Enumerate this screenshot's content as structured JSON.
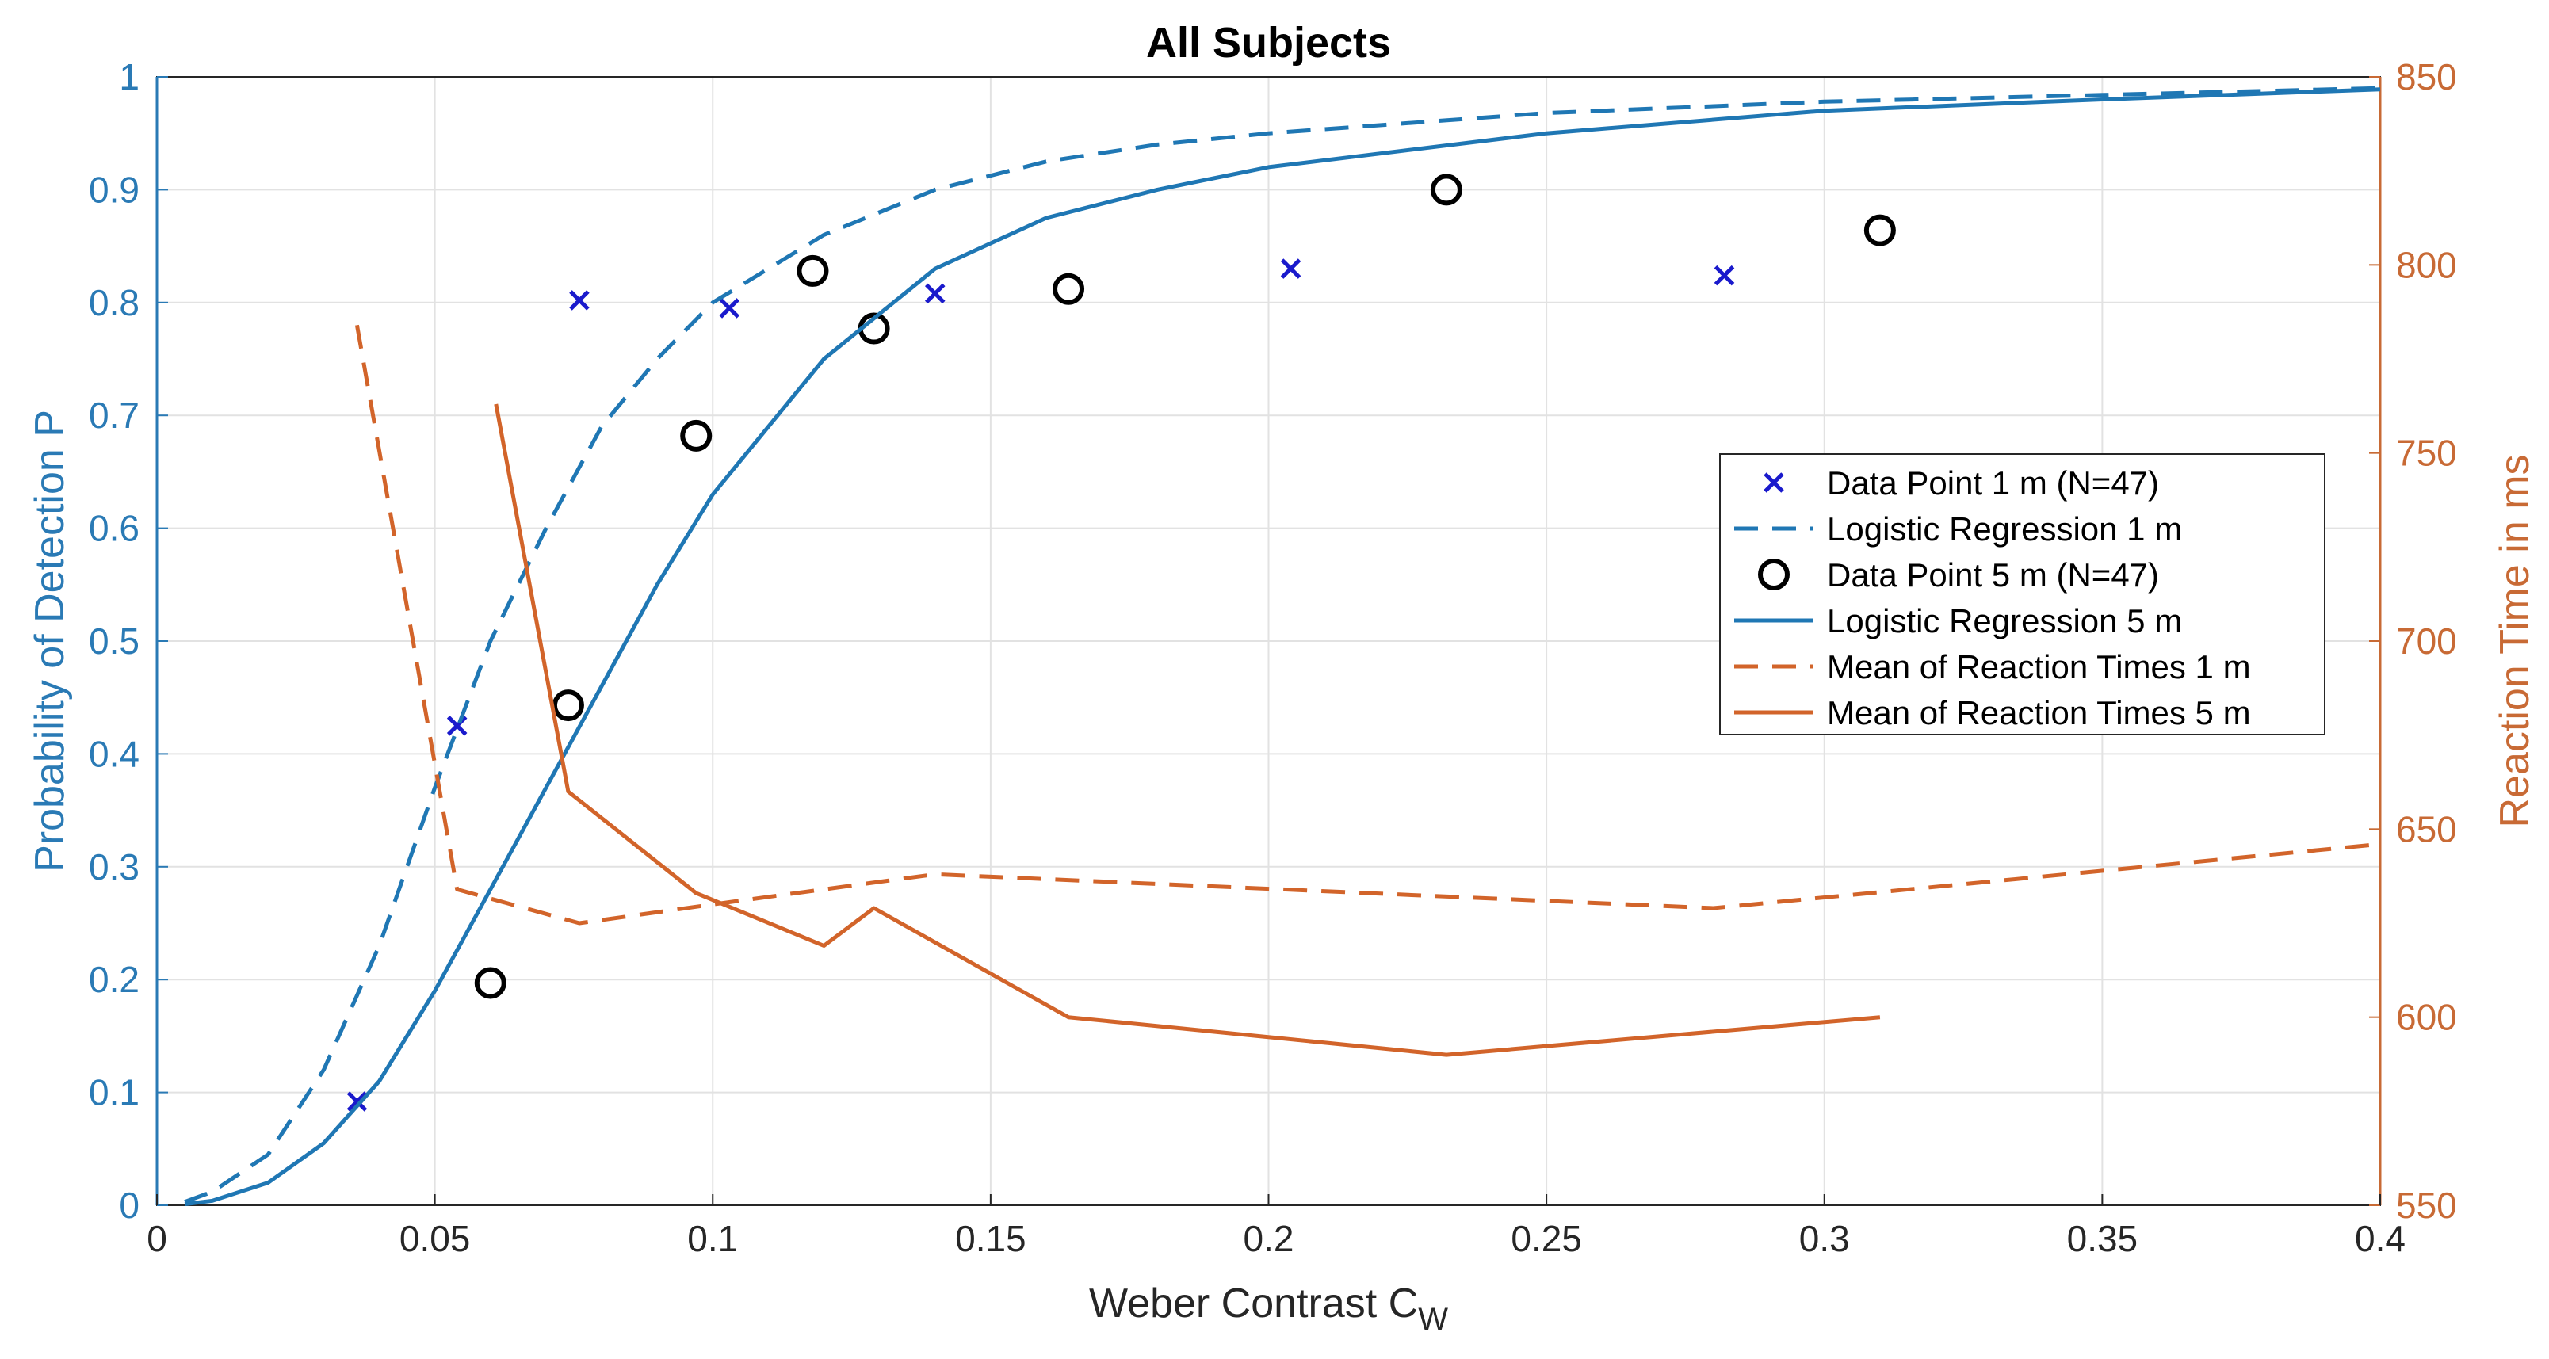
{
  "chart_data": {
    "type": "scatter",
    "title": "All Subjects",
    "xlabel": "Weber Contrast C",
    "xlabel_sub": "W",
    "ylabel_left": "Probability of Detection P",
    "ylabel_right": "Reaction Time in ms",
    "xlim": [
      0,
      0.4
    ],
    "ylim_left": [
      0,
      1
    ],
    "ylim_right": [
      550,
      850
    ],
    "x_ticks": [
      "0",
      "0.05",
      "0.1",
      "0.15",
      "0.2",
      "0.25",
      "0.3",
      "0.35",
      "0.4"
    ],
    "y_left_ticks": [
      "0",
      "0.1",
      "0.2",
      "0.3",
      "0.4",
      "0.5",
      "0.6",
      "0.7",
      "0.8",
      "0.9",
      "1"
    ],
    "y_right_ticks": [
      "550",
      "600",
      "650",
      "700",
      "750",
      "800",
      "850"
    ],
    "grid": true,
    "legend_position": "center-right",
    "colors": {
      "left_axis": "#2a7ab5",
      "right_axis": "#c86a35",
      "regression": "#1f77b4",
      "reaction": "#d2642a",
      "marker_x": "#1a1acc",
      "marker_o": "#000000",
      "grid": "#e2e2e2"
    },
    "series": [
      {
        "name": "Data Point 1 m (N=47)",
        "axis": "left",
        "style": "x-marker",
        "points": [
          [
            0.036,
            0.092
          ],
          [
            0.054,
            0.425
          ],
          [
            0.076,
            0.802
          ],
          [
            0.103,
            0.795
          ],
          [
            0.14,
            0.808
          ],
          [
            0.204,
            0.83
          ],
          [
            0.282,
            0.824
          ]
        ]
      },
      {
        "name": "Logistic Regression 1 m",
        "axis": "left",
        "style": "dashed",
        "points": [
          [
            0.005,
            0.003
          ],
          [
            0.01,
            0.012
          ],
          [
            0.02,
            0.045
          ],
          [
            0.03,
            0.12
          ],
          [
            0.04,
            0.23
          ],
          [
            0.05,
            0.37
          ],
          [
            0.06,
            0.5
          ],
          [
            0.07,
            0.6
          ],
          [
            0.08,
            0.69
          ],
          [
            0.09,
            0.75
          ],
          [
            0.1,
            0.8
          ],
          [
            0.12,
            0.86
          ],
          [
            0.14,
            0.9
          ],
          [
            0.16,
            0.925
          ],
          [
            0.18,
            0.94
          ],
          [
            0.2,
            0.95
          ],
          [
            0.25,
            0.968
          ],
          [
            0.3,
            0.978
          ],
          [
            0.35,
            0.984
          ],
          [
            0.4,
            0.99
          ]
        ]
      },
      {
        "name": "Data Point 5 m (N=47)",
        "axis": "left",
        "style": "o-marker",
        "points": [
          [
            0.06,
            0.197
          ],
          [
            0.074,
            0.443
          ],
          [
            0.097,
            0.682
          ],
          [
            0.118,
            0.828
          ],
          [
            0.129,
            0.777
          ],
          [
            0.164,
            0.812
          ],
          [
            0.232,
            0.9
          ],
          [
            0.31,
            0.864
          ]
        ]
      },
      {
        "name": "Logistic Regression 5 m",
        "axis": "left",
        "style": "solid",
        "points": [
          [
            0.005,
            0.001
          ],
          [
            0.01,
            0.004
          ],
          [
            0.02,
            0.02
          ],
          [
            0.03,
            0.055
          ],
          [
            0.04,
            0.11
          ],
          [
            0.05,
            0.19
          ],
          [
            0.06,
            0.28
          ],
          [
            0.07,
            0.37
          ],
          [
            0.08,
            0.46
          ],
          [
            0.09,
            0.55
          ],
          [
            0.1,
            0.63
          ],
          [
            0.12,
            0.75
          ],
          [
            0.14,
            0.83
          ],
          [
            0.16,
            0.875
          ],
          [
            0.18,
            0.9
          ],
          [
            0.2,
            0.92
          ],
          [
            0.25,
            0.95
          ],
          [
            0.3,
            0.97
          ],
          [
            0.35,
            0.98
          ],
          [
            0.4,
            0.989
          ]
        ]
      },
      {
        "name": "Mean of Reaction Times 1 m",
        "axis": "right",
        "style": "dashed",
        "points": [
          [
            0.036,
            784
          ],
          [
            0.054,
            634
          ],
          [
            0.076,
            625
          ],
          [
            0.1,
            630
          ],
          [
            0.14,
            638
          ],
          [
            0.28,
            629
          ],
          [
            0.4,
            646
          ]
        ]
      },
      {
        "name": "Mean of Reaction Times 5 m",
        "axis": "right",
        "style": "solid",
        "points": [
          [
            0.061,
            763
          ],
          [
            0.074,
            660
          ],
          [
            0.097,
            633
          ],
          [
            0.12,
            619
          ],
          [
            0.129,
            629
          ],
          [
            0.164,
            600
          ],
          [
            0.232,
            590
          ],
          [
            0.31,
            600
          ]
        ]
      }
    ]
  }
}
